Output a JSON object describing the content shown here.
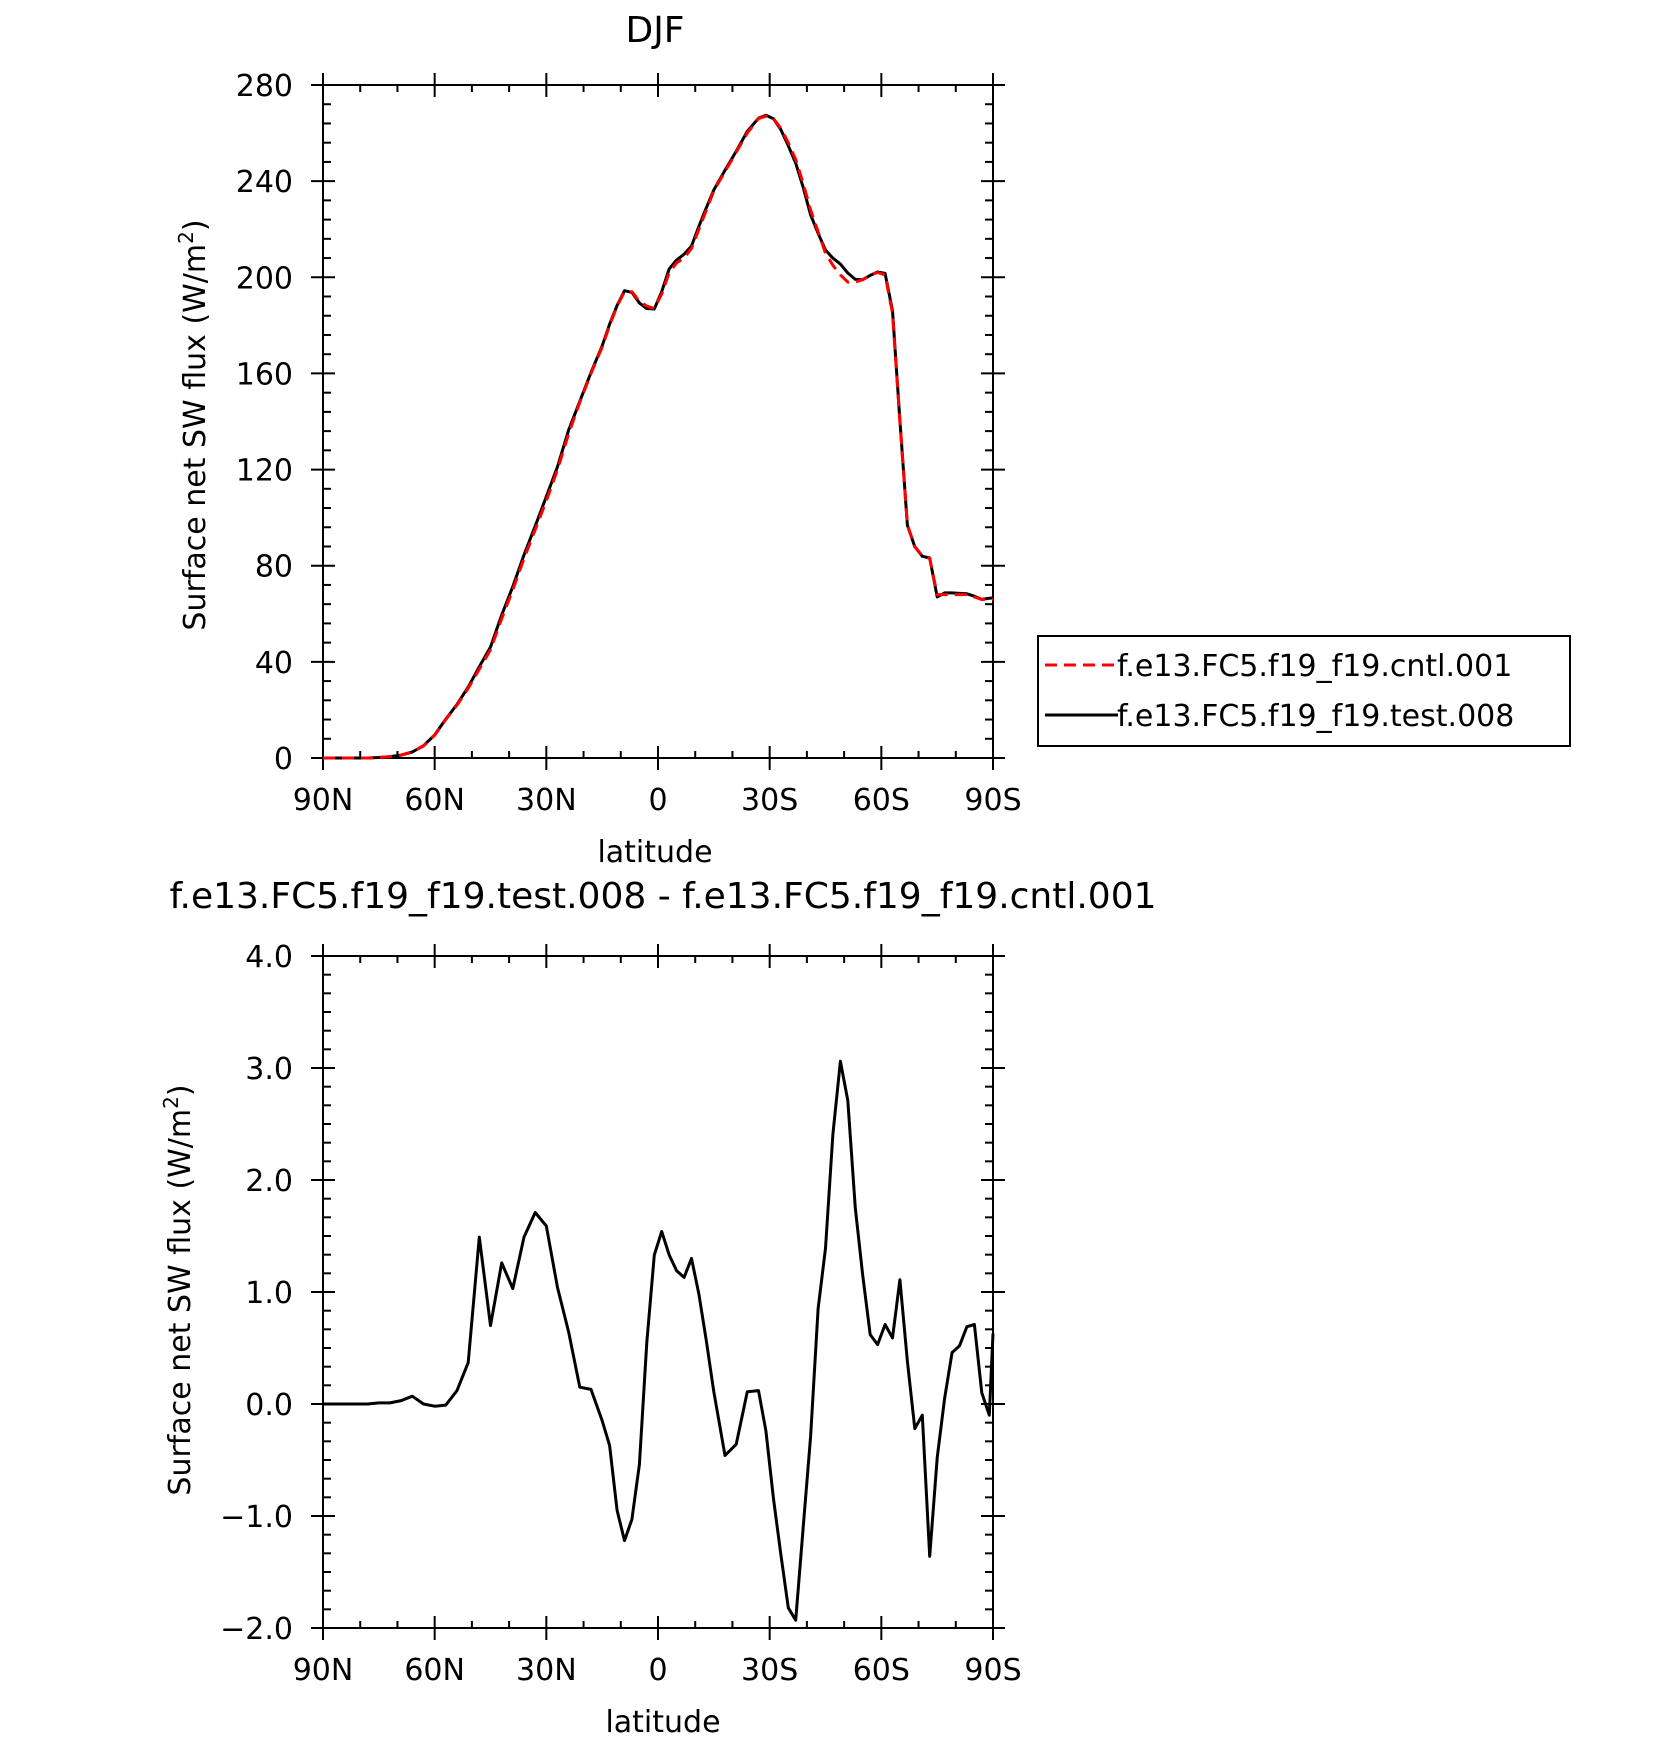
{
  "chart_data": [
    {
      "type": "line",
      "title": "DJF",
      "xlabel": "latitude",
      "ylabel": "Surface net SW flux (W/m²)",
      "ylabel_prefix": "Surface net SW flux (W/m",
      "ylabel_exp": "2",
      "ylabel_suffix": ")",
      "xlim": [
        -90,
        90
      ],
      "ylim": [
        0,
        280
      ],
      "xticks": [
        -90,
        -60,
        -30,
        0,
        30,
        60,
        90
      ],
      "xtick_labels": [
        "90N",
        "60N",
        "30N",
        "0",
        "30S",
        "60S",
        "90S"
      ],
      "yticks": [
        0,
        40,
        80,
        120,
        160,
        200,
        240,
        280
      ],
      "ytick_labels": [
        "0",
        "40",
        "80",
        "120",
        "160",
        "200",
        "240",
        "280"
      ],
      "legend_placement": "right, outside plot",
      "series": [
        {
          "name": "f.e13.FC5.f19_f19.cntl.001",
          "color": "#ff0000",
          "style": "dashed",
          "x": [
            -90,
            -87,
            -84,
            -81,
            -78,
            -75,
            -72,
            -69,
            -66,
            -63,
            -60,
            -57,
            -54,
            -51,
            -48,
            -45,
            -42,
            -39,
            -36,
            -33,
            -30,
            -27,
            -24,
            -21,
            -18,
            -15,
            -13,
            -11,
            -9,
            -7,
            -5,
            -3,
            -1,
            1,
            3,
            5,
            7,
            9,
            11,
            13,
            15,
            18,
            21,
            24,
            27,
            29,
            31,
            33,
            35,
            37,
            39,
            41,
            43,
            45,
            47,
            49,
            51,
            53,
            55,
            57,
            59,
            61,
            63,
            65,
            67,
            69,
            71,
            73,
            75,
            77,
            79,
            81,
            83,
            85,
            87,
            89,
            90
          ],
          "values": [
            0,
            0,
            0,
            0,
            0,
            0.2,
            0.6,
            1.2,
            2.5,
            5,
            9.5,
            16,
            22,
            29,
            37,
            45,
            58,
            70,
            83,
            95,
            107,
            120,
            135,
            148,
            160,
            171,
            180,
            188,
            194,
            194,
            190,
            188,
            187,
            193,
            202,
            206,
            208,
            212,
            220,
            228,
            236,
            244,
            252,
            260,
            266,
            267,
            266,
            262,
            256,
            249,
            239,
            228,
            219,
            210,
            205,
            201,
            198,
            198,
            199,
            201,
            202,
            201,
            185,
            140,
            97,
            88,
            84,
            83,
            68,
            68,
            68,
            68,
            68,
            67,
            66,
            66,
            66
          ]
        },
        {
          "name": "f.e13.FC5.f19_f19.test.008",
          "color": "#000000",
          "style": "solid",
          "x": [
            -90,
            -87,
            -84,
            -81,
            -78,
            -75,
            -72,
            -69,
            -66,
            -63,
            -60,
            -57,
            -54,
            -51,
            -48,
            -45,
            -42,
            -39,
            -36,
            -33,
            -30,
            -27,
            -24,
            -21,
            -18,
            -15,
            -13,
            -11,
            -9,
            -7,
            -5,
            -3,
            -1,
            1,
            3,
            5,
            7,
            9,
            11,
            13,
            15,
            18,
            21,
            24,
            27,
            29,
            31,
            33,
            35,
            37,
            39,
            41,
            43,
            45,
            47,
            49,
            51,
            53,
            55,
            57,
            59,
            61,
            63,
            65,
            67,
            69,
            71,
            73,
            75,
            77,
            79,
            81,
            83,
            85,
            87,
            89,
            90
          ],
          "values": [
            0,
            0,
            0,
            0,
            0,
            0.2,
            0.6,
            1.2,
            2.5,
            5.1,
            9.6,
            16.2,
            22.3,
            29.5,
            38,
            46.2,
            59.5,
            71.3,
            84.5,
            96.5,
            108.7,
            121.2,
            136.5,
            148.4,
            160.4,
            171.5,
            180.5,
            188.3,
            194.4,
            193.7,
            189.3,
            187,
            186.8,
            194,
            203.5,
            207.2,
            209.6,
            213,
            221.2,
            229,
            236.3,
            244.5,
            252.4,
            260.7,
            266.2,
            267.4,
            266,
            261.5,
            254.7,
            247.5,
            237.4,
            226,
            218.3,
            211.3,
            208,
            205.5,
            201.8,
            199.1,
            199,
            200.8,
            202.2,
            201.6,
            186.1,
            140.4,
            96.8,
            87.9,
            83.9,
            83.2,
            67,
            68.7,
            68.7,
            68.5,
            68.3,
            67.3,
            66,
            66.5,
            66.6
          ]
        }
      ]
    },
    {
      "type": "line",
      "title": "f.e13.FC5.f19_f19.test.008 - f.e13.FC5.f19_f19.cntl.001",
      "xlabel": "latitude",
      "ylabel": "Surface net SW flux (W/m²)",
      "ylabel_prefix": "Surface net SW flux (W/m",
      "ylabel_exp": "2",
      "ylabel_suffix": ")",
      "xlim": [
        -90,
        90
      ],
      "ylim": [
        -2.0,
        4.0
      ],
      "xticks": [
        -90,
        -60,
        -30,
        0,
        30,
        60,
        90
      ],
      "xtick_labels": [
        "90N",
        "60N",
        "30N",
        "0",
        "30S",
        "60S",
        "90S"
      ],
      "yticks": [
        -2.0,
        -1.0,
        0.0,
        1.0,
        2.0,
        3.0,
        4.0
      ],
      "ytick_labels": [
        "−2.0",
        "−1.0",
        "0.0",
        "1.0",
        "2.0",
        "3.0",
        "4.0"
      ],
      "series": [
        {
          "color": "#000000",
          "style": "solid",
          "x": [
            -90,
            -87,
            -84,
            -81,
            -78,
            -75,
            -72,
            -69,
            -66,
            -63,
            -60,
            -57,
            -54,
            -51,
            -48,
            -45,
            -42,
            -39,
            -36,
            -33,
            -30,
            -27,
            -24,
            -21,
            -18,
            -15,
            -13,
            -11,
            -9,
            -7,
            -5,
            -3,
            -1,
            1,
            3,
            5,
            7,
            9,
            11,
            13,
            15,
            18,
            21,
            24,
            27,
            29,
            31,
            33,
            35,
            37,
            39,
            41,
            43,
            45,
            47,
            49,
            51,
            53,
            55,
            57,
            59,
            61,
            63,
            65,
            67,
            69,
            71,
            73,
            75,
            77,
            79,
            81,
            83,
            85,
            87,
            89,
            90
          ],
          "values": [
            0,
            0,
            0,
            0,
            0,
            0.01,
            0.01,
            0.03,
            0.07,
            0.0,
            -0.02,
            -0.01,
            0.12,
            0.37,
            1.49,
            0.7,
            1.26,
            1.03,
            1.49,
            1.71,
            1.59,
            1.04,
            0.64,
            0.15,
            0.13,
            -0.15,
            -0.37,
            -0.95,
            -1.22,
            -1.03,
            -0.54,
            0.55,
            1.33,
            1.54,
            1.33,
            1.19,
            1.13,
            1.3,
            0.98,
            0.56,
            0.11,
            -0.46,
            -0.36,
            0.11,
            0.12,
            -0.24,
            -0.84,
            -1.34,
            -1.82,
            -1.93,
            -1.1,
            -0.29,
            0.85,
            1.39,
            2.41,
            3.06,
            2.71,
            1.75,
            1.15,
            0.62,
            0.53,
            0.71,
            0.59,
            1.11,
            0.38,
            -0.22,
            -0.1,
            -1.36,
            -0.48,
            0.05,
            0.46,
            0.52,
            0.69,
            0.71,
            0.1,
            -0.1,
            0.63
          ]
        }
      ]
    }
  ]
}
